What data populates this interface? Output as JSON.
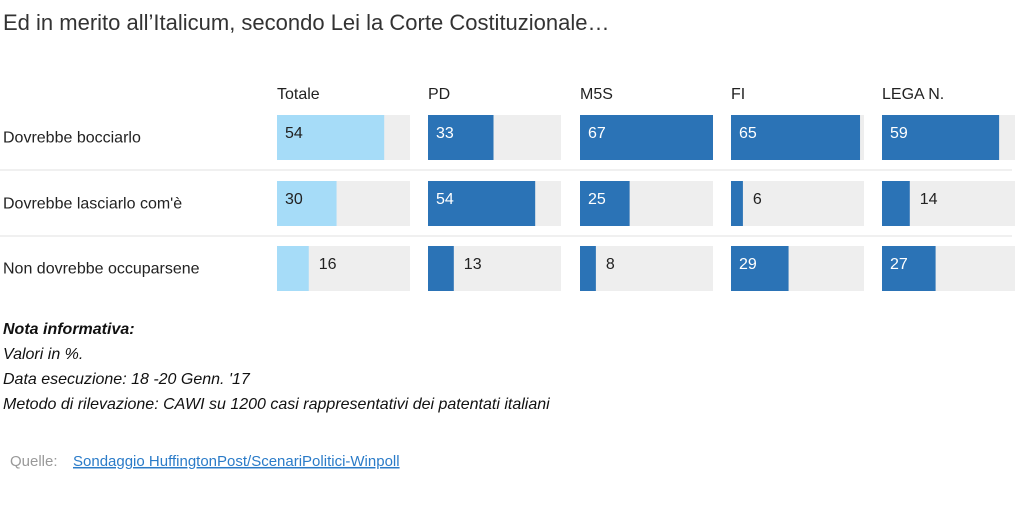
{
  "chart_data": {
    "type": "bar",
    "title": "Ed in merito all’Italicum, secondo Lei la Corte Costituzionale…",
    "categories": [
      "Dovrebbe bocciarlo",
      "Dovrebbe lasciarlo com'è",
      "Non dovrebbe occuparsene"
    ],
    "series": [
      {
        "name": "Totale",
        "color": "#a6dcf8",
        "values": [
          54,
          30,
          16
        ]
      },
      {
        "name": "PD",
        "color": "#2b73b6",
        "values": [
          33,
          54,
          13
        ]
      },
      {
        "name": "M5S",
        "color": "#2b73b6",
        "values": [
          67,
          25,
          8
        ]
      },
      {
        "name": "FI",
        "color": "#2b73b6",
        "values": [
          65,
          6,
          29
        ]
      },
      {
        "name": "LEGA N.",
        "color": "#2b73b6",
        "values": [
          59,
          14,
          27
        ]
      }
    ],
    "xlim": [
      0,
      67
    ],
    "notes": {
      "title": "Nota informativa:",
      "lines": [
        "Valori in %.",
        "Data esecuzione: 18 -20  Genn. '17",
        "Metodo di rilevazione: CAWI su 1200 casi rappresentativi dei patentati italiani"
      ]
    },
    "source": {
      "label": "Quelle:",
      "link": "Sondaggio HuffingtonPost/ScenariPolitici-Winpoll"
    }
  }
}
